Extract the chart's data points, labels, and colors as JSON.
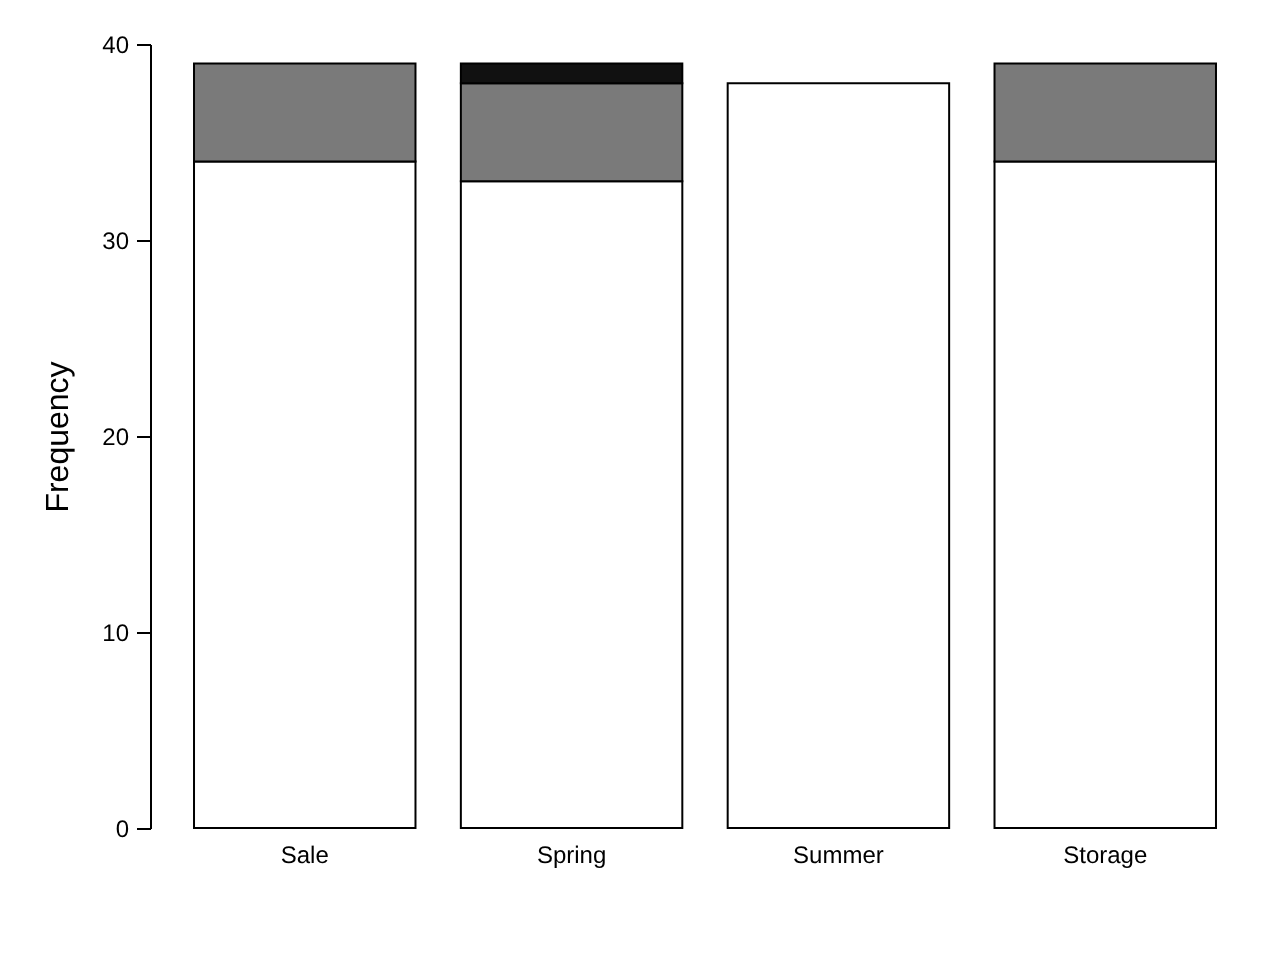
{
  "chart_data": {
    "type": "bar",
    "stacked": true,
    "ylabel": "Frequency",
    "categories": [
      "Sale",
      "Spring",
      "Summer",
      "Storage"
    ],
    "series": [
      {
        "color": "#ffffff",
        "values": [
          34,
          33,
          38,
          34
        ]
      },
      {
        "color": "#7a7a7a",
        "values": [
          5,
          5,
          null,
          5
        ]
      },
      {
        "color": "#111111",
        "values": [
          null,
          1,
          null,
          null
        ]
      }
    ],
    "ylim": [
      0,
      40
    ],
    "yticks": [
      0,
      10,
      20,
      30,
      40
    ],
    "grid": false,
    "legend": false
  }
}
